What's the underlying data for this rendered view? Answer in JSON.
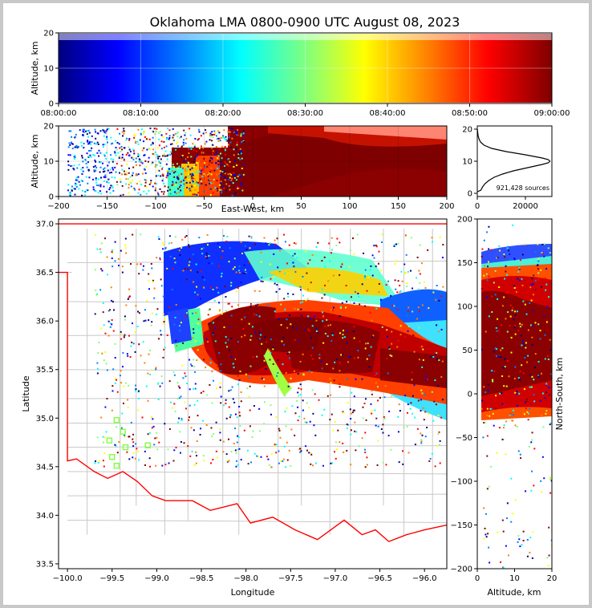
{
  "chart_data": [
    {
      "id": "time_altitude",
      "type": "scatter",
      "title": "Oklahoma LMA 0800-0900 UTC August 08, 2023",
      "xlabel": "",
      "ylabel": "Altitude, km",
      "xlim": [
        "08:00:00",
        "09:00:00"
      ],
      "ylim": [
        0,
        20
      ],
      "x_ticks": [
        "08:00:00",
        "08:10:00",
        "08:20:00",
        "08:30:00",
        "08:40:00",
        "08:50:00",
        "09:00:00"
      ],
      "y_ticks": [
        "0",
        "10",
        "20"
      ],
      "color_encoding": "time",
      "colormap": [
        "#00007f",
        "#0000ff",
        "#007fff",
        "#00ffff",
        "#7fff7f",
        "#ffff00",
        "#ff7f00",
        "#ff0000",
        "#7f0000"
      ],
      "grid": true
    },
    {
      "id": "ew_altitude",
      "type": "scatter",
      "xlabel": "East-West, km",
      "ylabel": "Altitude, km",
      "xlim": [
        -200,
        200
      ],
      "ylim": [
        0,
        20
      ],
      "x_ticks": [
        "−200",
        "−150",
        "−100",
        "−50",
        "0",
        "50",
        "100",
        "150",
        "200"
      ],
      "y_ticks": [
        "0",
        "10",
        "20"
      ],
      "grid": true
    },
    {
      "id": "altitude_histogram",
      "type": "line",
      "annotation": "921,428 sources",
      "xlim": [
        0,
        31000
      ],
      "ylim": [
        -1,
        21
      ],
      "x_ticks": [
        "0",
        "20000"
      ],
      "y_ticks": [
        "0",
        "10",
        "20"
      ],
      "curve": {
        "altitude_km": [
          0.5,
          1,
          2,
          3,
          4,
          5,
          6,
          7,
          8,
          9,
          9.5,
          10,
          10.5,
          11,
          12,
          13,
          14,
          15,
          16,
          17,
          18,
          19,
          20
        ],
        "count": [
          100,
          1500,
          2200,
          3200,
          4800,
          7000,
          10500,
          15000,
          21000,
          27000,
          29500,
          30200,
          29500,
          27000,
          20000,
          12000,
          6000,
          2800,
          1300,
          700,
          350,
          150,
          50
        ]
      }
    },
    {
      "id": "plan_view",
      "type": "scatter",
      "xlabel": "Longitude",
      "ylabel": "Latitude",
      "xlim": [
        -100.1,
        -95.75
      ],
      "ylim": [
        33.45,
        37.05
      ],
      "x_ticks": [
        "−100.0",
        "−99.5",
        "−99.0",
        "−98.5",
        "−98.0",
        "−97.5",
        "−97.0",
        "−96.5",
        "−96.0"
      ],
      "y_ticks": [
        "33.5",
        "34.0",
        "34.5",
        "35.0",
        "35.5",
        "36.0",
        "36.5",
        "37.0"
      ],
      "border_color": "#ff0000",
      "county_color": "#c8c8c8",
      "stations": [
        {
          "lon": -99.45,
          "lat": 34.98
        },
        {
          "lon": -99.38,
          "lat": 34.86
        },
        {
          "lon": -99.53,
          "lat": 34.77
        },
        {
          "lon": -99.35,
          "lat": 34.7
        },
        {
          "lon": -99.5,
          "lat": 34.6
        },
        {
          "lon": -99.45,
          "lat": 34.51
        },
        {
          "lon": -99.1,
          "lat": 34.72
        }
      ],
      "station_color": "#7fff3f"
    },
    {
      "id": "ns_altitude",
      "type": "scatter",
      "xlabel": "Altitude, km",
      "ylabel": "North-South, km",
      "xlim": [
        0,
        20
      ],
      "ylim": [
        -200,
        200
      ],
      "x_ticks": [
        "0",
        "10",
        "20"
      ],
      "y_ticks": [
        "−200",
        "−150",
        "−100",
        "−50",
        "0",
        "50",
        "100",
        "150",
        "200"
      ]
    }
  ]
}
